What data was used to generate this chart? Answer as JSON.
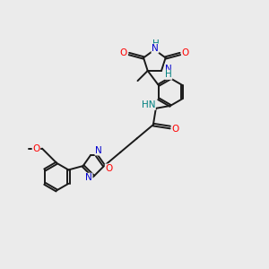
{
  "background_color": "#ebebeb",
  "atom_color_C": "#1a1a1a",
  "atom_color_N": "#0000cd",
  "atom_color_O": "#ff0000",
  "atom_color_H": "#008080",
  "bond_color": "#1a1a1a",
  "line_width": 1.4,
  "figsize": [
    3.0,
    3.0
  ],
  "dpi": 100,
  "xlim": [
    0,
    10
  ],
  "ylim": [
    0,
    10
  ]
}
